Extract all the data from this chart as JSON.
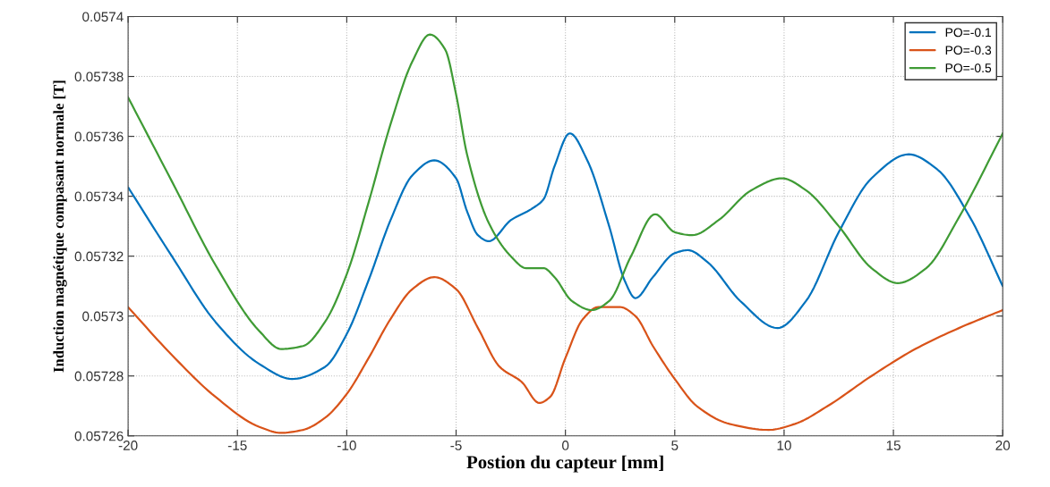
{
  "chart_data": {
    "type": "line",
    "xlabel": "Postion du capteur [mm]",
    "ylabel": "Induction magnétique compasant normale [T]",
    "xlim": [
      -20,
      20
    ],
    "xticks": [
      -20,
      -15,
      -10,
      -5,
      0,
      5,
      10,
      15,
      20
    ],
    "ylim": [
      0.05726,
      0.0574
    ],
    "yticks": [
      0.05726,
      0.05728,
      0.0573,
      0.05732,
      0.05734,
      0.05736,
      0.05738,
      0.0574
    ],
    "grid": true,
    "legend": "top right",
    "line_style": "solid",
    "marker": "none",
    "series": [
      {
        "name": "PO=-0.1",
        "color": "#0072bd",
        "x": [
          -20,
          -18,
          -16,
          -14,
          -12.5,
          -11,
          -10,
          -9,
          -8,
          -7,
          -6,
          -5,
          -4.5,
          -4,
          -3.5,
          -2.5,
          -1.5,
          -1,
          -0.5,
          0.2,
          1,
          2,
          2.7,
          3.2,
          4,
          5,
          5.6,
          6.5,
          8,
          9.7,
          11,
          12.5,
          14,
          15.7,
          17,
          18.5,
          20
        ],
        "values": [
          0.057343,
          0.05732,
          0.057298,
          0.057284,
          0.057279,
          0.057283,
          0.057294,
          0.057312,
          0.057332,
          0.057347,
          0.057352,
          0.057346,
          0.057335,
          0.057327,
          0.057325,
          0.057332,
          0.057336,
          0.057339,
          0.05735,
          0.057361,
          0.057352,
          0.05733,
          0.057312,
          0.057306,
          0.057313,
          0.057321,
          0.057322,
          0.057318,
          0.057305,
          0.057296,
          0.057305,
          0.057328,
          0.057346,
          0.057354,
          0.057349,
          0.057333,
          0.05731
        ]
      },
      {
        "name": "PO=-0.3",
        "color": "#d95319",
        "x": [
          -20,
          -18,
          -16,
          -14,
          -13,
          -12,
          -11,
          -10,
          -9,
          -8,
          -7,
          -6,
          -5,
          -4,
          -3,
          -2,
          -1.2,
          -0.7,
          0,
          0.8,
          1.5,
          2.5,
          3.2,
          4,
          5,
          6,
          7.5,
          9.3,
          10.5,
          12,
          14,
          16,
          18,
          20
        ],
        "values": [
          0.057303,
          0.057287,
          0.057273,
          0.057263,
          0.057261,
          0.057262,
          0.057266,
          0.057274,
          0.057286,
          0.057299,
          0.057309,
          0.057313,
          0.057309,
          0.057296,
          0.057283,
          0.057278,
          0.057271,
          0.057273,
          0.057286,
          0.057299,
          0.057303,
          0.057303,
          0.0573,
          0.05729,
          0.057279,
          0.05727,
          0.057264,
          0.057262,
          0.057264,
          0.05727,
          0.05728,
          0.057289,
          0.057296,
          0.057302
        ]
      },
      {
        "name": "PO=-0.5",
        "color": "#3f9b35",
        "x": [
          -20,
          -18,
          -16,
          -14,
          -13,
          -12,
          -11,
          -10,
          -9,
          -8,
          -7,
          -6.2,
          -5.5,
          -5,
          -4.5,
          -3.5,
          -2.5,
          -1.8,
          -1,
          -0.5,
          0.3,
          1.2,
          2,
          3,
          4.1,
          5,
          5.8,
          7,
          8.5,
          9.9,
          11,
          12.5,
          14,
          15.2,
          16.5,
          18,
          20
        ],
        "values": [
          0.057373,
          0.057345,
          0.057317,
          0.057295,
          0.057289,
          0.05729,
          0.057298,
          0.057314,
          0.057338,
          0.057364,
          0.057385,
          0.057394,
          0.057389,
          0.057374,
          0.057354,
          0.057331,
          0.05732,
          0.057316,
          0.057316,
          0.057313,
          0.057305,
          0.057302,
          0.057305,
          0.05732,
          0.057334,
          0.057328,
          0.057327,
          0.057332,
          0.057342,
          0.057346,
          0.057342,
          0.05733,
          0.057316,
          0.057311,
          0.057316,
          0.057333,
          0.057361
        ]
      }
    ]
  }
}
